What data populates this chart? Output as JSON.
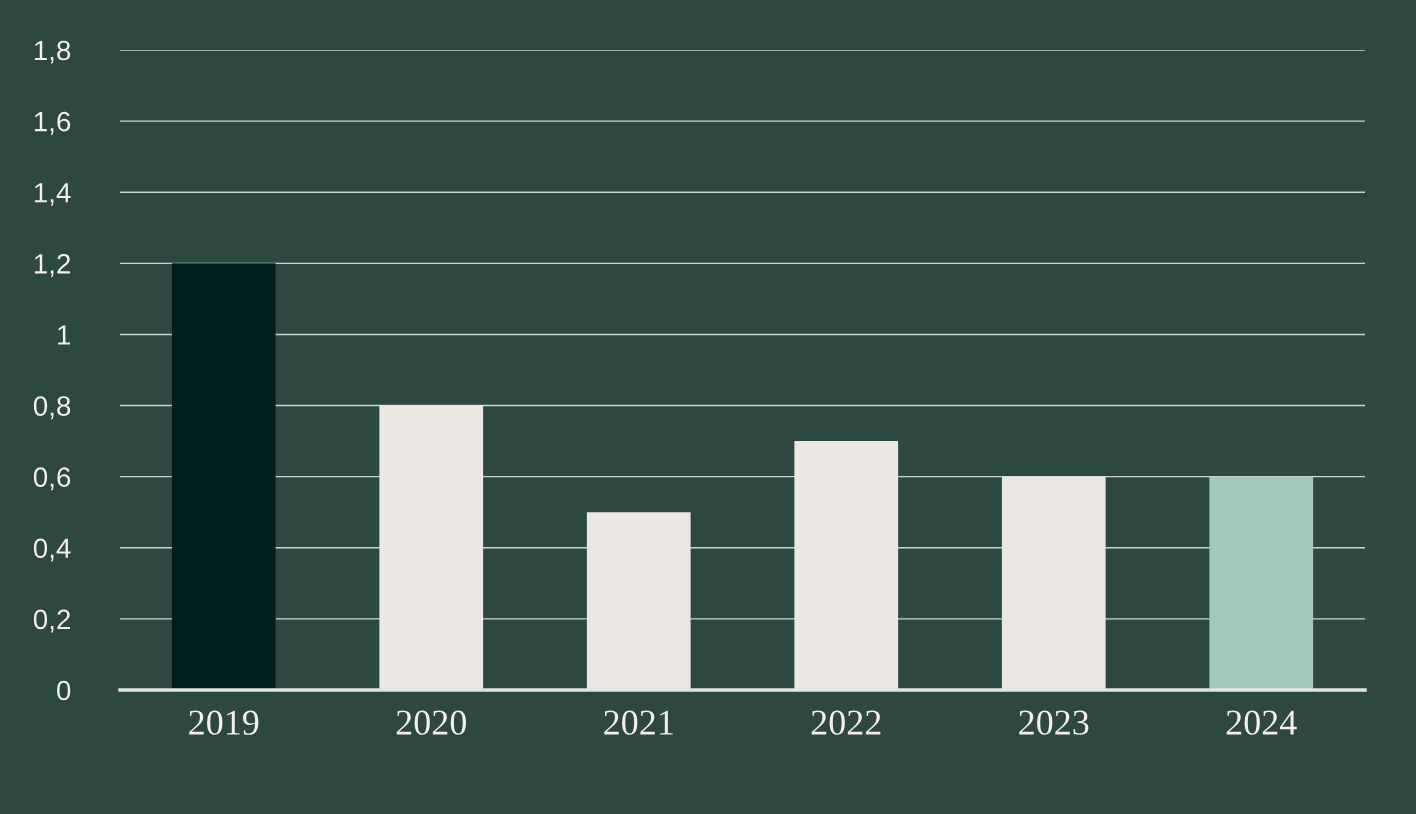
{
  "chart_data": {
    "type": "bar",
    "categories": [
      "2019",
      "2020",
      "2021",
      "2022",
      "2023",
      "2024"
    ],
    "values": [
      1.2,
      0.8,
      0.5,
      0.7,
      0.6,
      0.6
    ],
    "colors": [
      "#001e1c",
      "#ece7e2",
      "#ece7e2",
      "#ece7e2",
      "#ece7e2",
      "#a3c6bd"
    ],
    "ylim": [
      0,
      1.8
    ],
    "yticks": [
      0,
      {
        "value": 0.2,
        "label": "0,2"
      },
      {
        "value": 0.4,
        "label": "0,4"
      },
      {
        "value": 0.6,
        "label": "0,6"
      },
      {
        "value": 0.8,
        "label": "0,8"
      },
      1,
      {
        "value": 1.2,
        "label": "1,2"
      },
      {
        "value": 1.4,
        "label": "1,4"
      },
      {
        "value": 1.6,
        "label": "1,6"
      },
      {
        "value": 1.8,
        "label": "1,8"
      }
    ],
    "grid": "y",
    "legend": false
  }
}
